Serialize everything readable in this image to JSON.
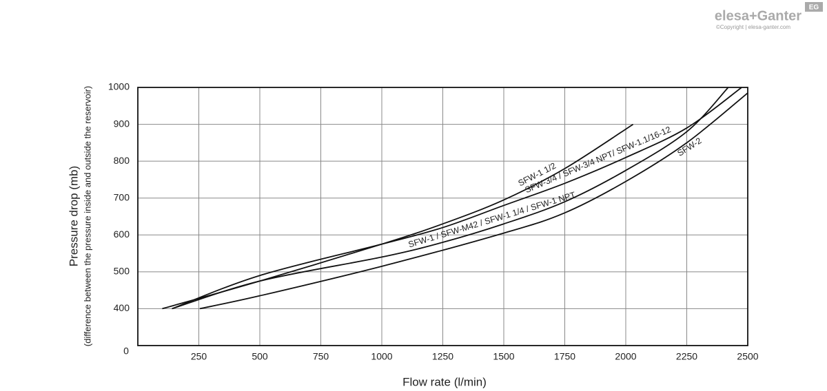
{
  "chart_data": {
    "type": "line",
    "xlabel": "Flow rate (l/min)",
    "ylabel": "Pressure drop (mb)",
    "ylabel_note": "(difference between the pressure inside and outside the reservoir)",
    "origin_label": "0",
    "xlim": [
      0,
      2500
    ],
    "ylim": [
      300,
      1000
    ],
    "xticks": [
      250,
      500,
      750,
      1000,
      1250,
      1500,
      1750,
      2000,
      2250,
      2500
    ],
    "yticks": [
      400,
      500,
      600,
      700,
      800,
      900,
      1000
    ],
    "grid": true,
    "series": [
      {
        "name": "SFW-1 1/2",
        "color": "#111111",
        "x": [
          100,
          500,
          1000,
          1250,
          1500,
          1750,
          2030
        ],
        "values": [
          400,
          475,
          575,
          630,
          695,
          780,
          900
        ]
      },
      {
        "name": "SFW-3/4 / SFW-3/4 NPT/ SFW-1.1/16-12",
        "color": "#111111",
        "x": [
          140,
          500,
          1000,
          1250,
          1500,
          1750,
          2000,
          2250,
          2475
        ],
        "values": [
          400,
          490,
          575,
          620,
          680,
          740,
          810,
          890,
          1000
        ]
      },
      {
        "name": "SFW-1 / SFW-M42 / SFW-1 1/4 / SFW-1 NPT",
        "color": "#111111",
        "x": [
          140,
          500,
          1000,
          1250,
          1500,
          1750,
          2000,
          2250,
          2420
        ],
        "values": [
          400,
          475,
          540,
          580,
          630,
          690,
          775,
          880,
          1000
        ]
      },
      {
        "name": "SFW-2",
        "color": "#111111",
        "x": [
          254,
          500,
          1000,
          1500,
          1750,
          2000,
          2250,
          2500
        ],
        "values": [
          400,
          435,
          515,
          605,
          660,
          745,
          850,
          985
        ]
      }
    ]
  },
  "logo": {
    "brand": "elesa+Ganter",
    "badge": "EG",
    "copyright": "©Copyright | elesa-ganter.com"
  }
}
